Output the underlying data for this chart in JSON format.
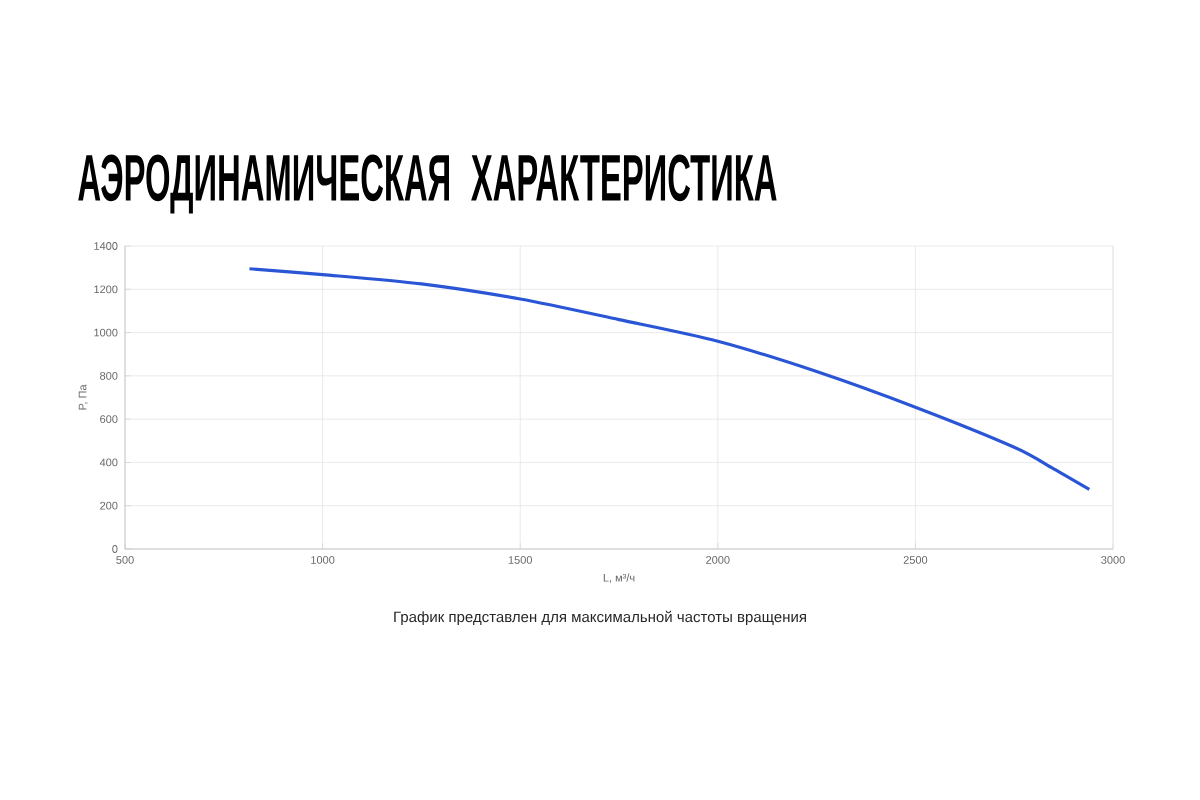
{
  "chart_data": {
    "type": "line",
    "title": "АЭРОДИНАМИЧЕСКАЯ ХАРАКТЕРИСТИКА",
    "xlabel": "L, м³/ч",
    "ylabel": "P, Па",
    "annotations": [
      "График представлен для максимальной частоты вращения"
    ],
    "series": [
      {
        "color": "#2a56d6",
        "x": [
          815,
          1000,
          1250,
          1500,
          1750,
          2000,
          2250,
          2500,
          2750,
          2850,
          2940
        ],
        "values": [
          1295,
          1268,
          1225,
          1155,
          1060,
          960,
          820,
          655,
          470,
          370,
          275
        ]
      }
    ],
    "xlim": [
      500,
      3000
    ],
    "xticks": [
      500,
      1000,
      1500,
      2000,
      2500,
      3000
    ],
    "ylim": [
      0,
      1400
    ],
    "yticks": [
      0,
      200,
      400,
      600,
      800,
      1000,
      1200,
      1400
    ],
    "grid": true,
    "marker": "none",
    "line_style": "solid"
  }
}
